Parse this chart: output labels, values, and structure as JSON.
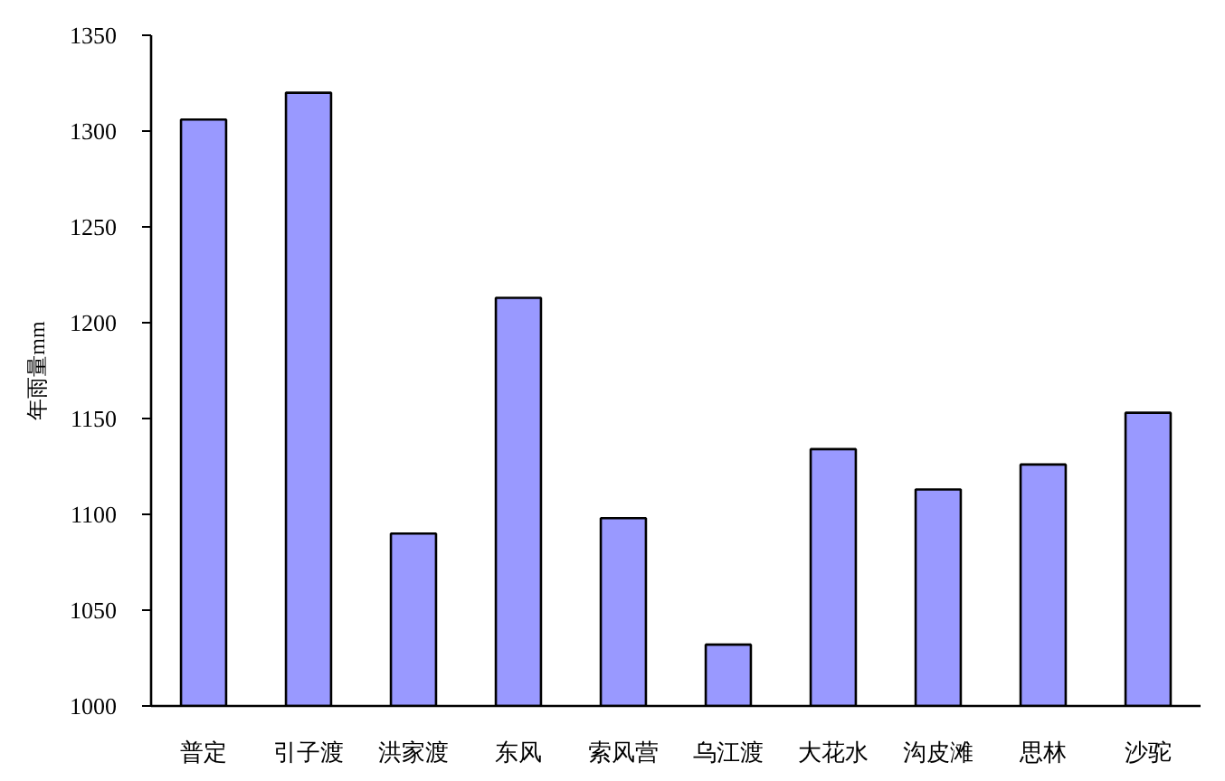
{
  "chart_data": {
    "type": "bar",
    "ylabel": "年雨量mm",
    "categories": [
      "普定",
      "引子渡",
      "洪家渡",
      "东风",
      "索风营",
      "乌江渡",
      "大花水",
      "沟皮滩",
      "思林",
      "沙驼"
    ],
    "values": [
      1306,
      1320,
      1090,
      1213,
      1098,
      1032,
      1134,
      1113,
      1126,
      1153
    ],
    "color": "#9999ff",
    "ylim": [
      1000,
      1350
    ],
    "yticks": [
      1000,
      1050,
      1100,
      1150,
      1200,
      1250,
      1300,
      1350
    ]
  }
}
